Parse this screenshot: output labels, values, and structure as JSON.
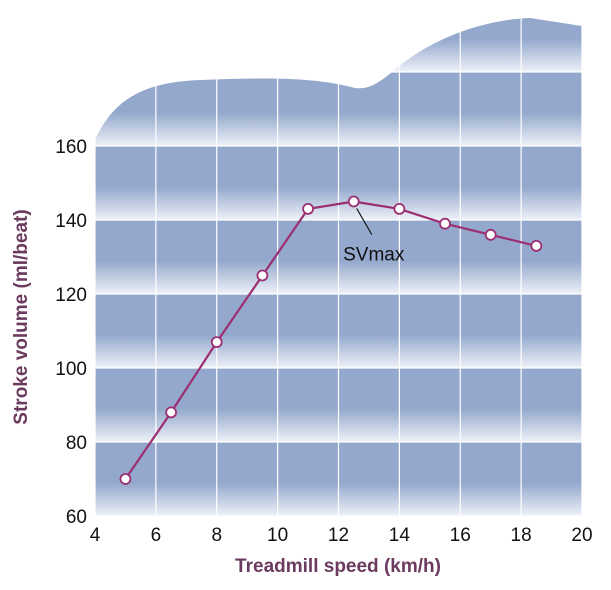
{
  "chart_data": {
    "type": "line",
    "title": "",
    "xlabel": "Treadmill speed (km/h)",
    "ylabel": "Stroke volume (ml/beat)",
    "xlim": [
      4,
      20
    ],
    "ylim": [
      60,
      160
    ],
    "x_ticks": [
      4,
      6,
      8,
      10,
      12,
      14,
      16,
      18,
      20
    ],
    "y_ticks": [
      60,
      80,
      100,
      120,
      140,
      160
    ],
    "grid": true,
    "series": [
      {
        "x": [
          5,
          6.5,
          8,
          9.5,
          11,
          12.5,
          14,
          15.5,
          17,
          18.5
        ],
        "y": [
          70,
          88,
          107,
          125,
          143,
          145,
          143,
          139,
          136,
          133
        ]
      }
    ],
    "annotations": [
      {
        "text": "SVmax",
        "x": 12.5,
        "y": 145
      }
    ],
    "colors": {
      "line": "#9b2f72",
      "axis_title": "#6b3a5e",
      "band": "#93a8cc",
      "band_light": "#eef1f8",
      "grid": "#ffffff"
    }
  }
}
